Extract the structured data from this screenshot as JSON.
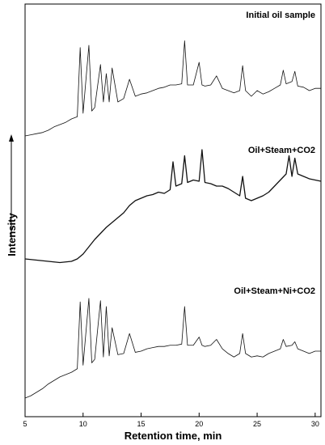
{
  "chart_data": {
    "type": "line",
    "xlabel": "Retention time, min",
    "ylabel": "Intensity",
    "xlim": [
      5,
      30.5
    ],
    "x_ticks": [
      "5",
      "10",
      "15",
      "20",
      "25",
      "30"
    ],
    "grid": false,
    "y_ticks_shown": false,
    "series": [
      {
        "name": "Initial oil sample",
        "x": [
          5.0,
          5.5,
          6.0,
          6.5,
          7.0,
          7.5,
          8.0,
          8.5,
          9.0,
          9.5,
          9.75,
          10.0,
          10.5,
          10.75,
          11.0,
          11.5,
          11.75,
          12.0,
          12.25,
          12.5,
          13.0,
          13.5,
          14.0,
          14.5,
          15.0,
          15.5,
          16.0,
          16.5,
          17.0,
          17.5,
          18.0,
          18.5,
          18.75,
          19.0,
          19.5,
          20.0,
          20.25,
          20.5,
          21.0,
          21.5,
          22.0,
          22.5,
          23.0,
          23.5,
          23.75,
          24.0,
          24.5,
          25.0,
          25.5,
          26.0,
          26.5,
          27.0,
          27.25,
          27.5,
          28.0,
          28.25,
          28.5,
          29.0,
          29.5,
          30.0,
          30.5
        ],
        "values": [
          0.0,
          0.01,
          0.02,
          0.03,
          0.05,
          0.08,
          0.1,
          0.12,
          0.15,
          0.17,
          0.78,
          0.2,
          0.8,
          0.22,
          0.25,
          0.63,
          0.3,
          0.55,
          0.3,
          0.6,
          0.3,
          0.33,
          0.5,
          0.35,
          0.37,
          0.38,
          0.4,
          0.42,
          0.43,
          0.45,
          0.45,
          0.46,
          0.84,
          0.45,
          0.45,
          0.65,
          0.45,
          0.44,
          0.45,
          0.53,
          0.42,
          0.4,
          0.38,
          0.4,
          0.62,
          0.4,
          0.35,
          0.4,
          0.37,
          0.39,
          0.42,
          0.45,
          0.58,
          0.46,
          0.48,
          0.57,
          0.44,
          0.43,
          0.4,
          0.42,
          0.42
        ]
      },
      {
        "name": "Oil+Steam+CO2",
        "x": [
          5.0,
          6.0,
          7.0,
          8.0,
          9.0,
          9.5,
          10.0,
          10.5,
          11.0,
          11.5,
          12.0,
          12.5,
          13.0,
          13.5,
          14.0,
          14.5,
          15.0,
          15.5,
          16.0,
          16.5,
          17.0,
          17.5,
          17.75,
          18.0,
          18.5,
          18.75,
          19.0,
          19.5,
          20.0,
          20.25,
          20.5,
          21.0,
          21.5,
          22.0,
          22.5,
          23.0,
          23.5,
          23.75,
          24.0,
          24.5,
          25.0,
          25.5,
          26.0,
          26.5,
          27.0,
          27.5,
          27.75,
          28.0,
          28.25,
          28.5,
          29.0,
          29.5,
          30.0,
          30.5
        ],
        "values": [
          0.0,
          -0.01,
          -0.02,
          -0.03,
          -0.02,
          0.0,
          0.04,
          0.1,
          0.16,
          0.21,
          0.26,
          0.3,
          0.34,
          0.38,
          0.44,
          0.48,
          0.5,
          0.52,
          0.53,
          0.55,
          0.54,
          0.57,
          0.8,
          0.6,
          0.62,
          0.85,
          0.63,
          0.65,
          0.64,
          0.9,
          0.63,
          0.62,
          0.6,
          0.6,
          0.58,
          0.55,
          0.52,
          0.68,
          0.5,
          0.48,
          0.5,
          0.52,
          0.55,
          0.6,
          0.65,
          0.7,
          0.85,
          0.68,
          0.83,
          0.7,
          0.68,
          0.66,
          0.65,
          0.64
        ]
      },
      {
        "name": "Oil+Steam+Ni+CO2",
        "x": [
          5.0,
          5.5,
          6.0,
          6.5,
          7.0,
          7.5,
          8.0,
          8.5,
          9.0,
          9.5,
          9.75,
          10.0,
          10.5,
          10.75,
          11.0,
          11.5,
          11.75,
          12.0,
          12.25,
          12.5,
          13.0,
          13.5,
          14.0,
          14.5,
          15.0,
          15.5,
          16.0,
          16.5,
          17.0,
          17.5,
          18.0,
          18.5,
          18.75,
          19.0,
          19.5,
          20.0,
          20.25,
          20.5,
          21.0,
          21.5,
          22.0,
          22.5,
          23.0,
          23.5,
          23.75,
          24.0,
          24.5,
          25.0,
          25.5,
          26.0,
          26.5,
          27.0,
          27.25,
          27.5,
          28.0,
          28.25,
          28.5,
          29.0,
          29.5,
          30.0,
          30.5
        ],
        "values": [
          0.0,
          0.02,
          0.05,
          0.08,
          0.12,
          0.15,
          0.18,
          0.2,
          0.22,
          0.25,
          0.82,
          0.28,
          0.85,
          0.3,
          0.33,
          0.83,
          0.35,
          0.78,
          0.36,
          0.6,
          0.37,
          0.38,
          0.55,
          0.39,
          0.4,
          0.42,
          0.43,
          0.44,
          0.44,
          0.45,
          0.45,
          0.46,
          0.78,
          0.45,
          0.45,
          0.52,
          0.45,
          0.44,
          0.45,
          0.5,
          0.42,
          0.38,
          0.35,
          0.38,
          0.55,
          0.38,
          0.35,
          0.36,
          0.35,
          0.38,
          0.4,
          0.42,
          0.5,
          0.44,
          0.45,
          0.48,
          0.42,
          0.4,
          0.38,
          0.4,
          0.4
        ]
      }
    ]
  }
}
